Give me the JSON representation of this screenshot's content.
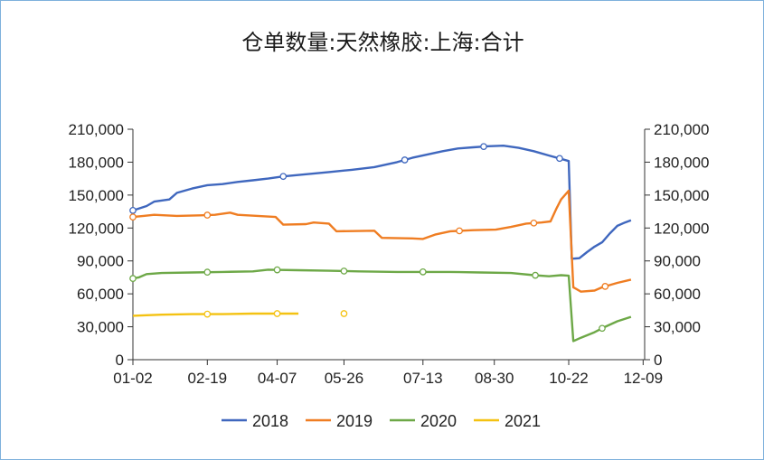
{
  "chart_data": {
    "type": "line",
    "title": "仓单数量:天然橡胶:上海:合计",
    "x_tick_labels": [
      "01-02",
      "02-19",
      "04-07",
      "05-26",
      "07-13",
      "08-30",
      "10-22",
      "12-09"
    ],
    "ylim": [
      0,
      210000
    ],
    "y_ticks": [
      0,
      30000,
      60000,
      90000,
      120000,
      150000,
      180000,
      210000
    ],
    "y_tick_labels": [
      "0",
      "30,000",
      "60,000",
      "90,000",
      "120,000",
      "150,000",
      "180,000",
      "210,000"
    ],
    "right_axis": true,
    "legend_position": "bottom",
    "series": [
      {
        "name": "2018",
        "color": "#3f67be",
        "points": [
          [
            1,
            136000
          ],
          [
            10,
            140000
          ],
          [
            15,
            144000
          ],
          [
            25,
            146000
          ],
          [
            30,
            152000
          ],
          [
            40,
            156000
          ],
          [
            50,
            159000
          ],
          [
            60,
            160000
          ],
          [
            70,
            162000
          ],
          [
            80,
            163500
          ],
          [
            90,
            165000
          ],
          [
            100,
            167000
          ],
          [
            115,
            169000
          ],
          [
            130,
            171000
          ],
          [
            145,
            173000
          ],
          [
            160,
            175500
          ],
          [
            175,
            180000
          ],
          [
            185,
            184000
          ],
          [
            195,
            187000
          ],
          [
            205,
            190000
          ],
          [
            215,
            192500
          ],
          [
            225,
            193500
          ],
          [
            235,
            194500
          ],
          [
            245,
            195000
          ],
          [
            255,
            193000
          ],
          [
            265,
            190000
          ],
          [
            275,
            186000
          ],
          [
            283,
            183000
          ],
          [
            288,
            181000
          ],
          [
            290,
            92000
          ],
          [
            295,
            92500
          ],
          [
            300,
            98000
          ],
          [
            305,
            103000
          ],
          [
            310,
            107000
          ],
          [
            315,
            115000
          ],
          [
            320,
            122000
          ],
          [
            325,
            125000
          ],
          [
            329,
            127000
          ]
        ],
        "markers": [
          1,
          100,
          180,
          232,
          282
        ]
      },
      {
        "name": "2019",
        "color": "#ef7d22",
        "points": [
          [
            1,
            130000
          ],
          [
            8,
            131000
          ],
          [
            15,
            132000
          ],
          [
            30,
            131000
          ],
          [
            45,
            131500
          ],
          [
            55,
            132000
          ],
          [
            65,
            134000
          ],
          [
            70,
            132000
          ],
          [
            95,
            130000
          ],
          [
            100,
            123000
          ],
          [
            115,
            123500
          ],
          [
            120,
            125000
          ],
          [
            130,
            124000
          ],
          [
            135,
            117000
          ],
          [
            160,
            117500
          ],
          [
            165,
            111000
          ],
          [
            185,
            110500
          ],
          [
            192,
            110000
          ],
          [
            200,
            114000
          ],
          [
            210,
            117000
          ],
          [
            225,
            118000
          ],
          [
            240,
            118500
          ],
          [
            250,
            121000
          ],
          [
            260,
            124000
          ],
          [
            270,
            125000
          ],
          [
            276,
            126000
          ],
          [
            280,
            138000
          ],
          [
            283,
            146000
          ],
          [
            288,
            154000
          ],
          [
            291,
            66000
          ],
          [
            296,
            62000
          ],
          [
            305,
            63000
          ],
          [
            310,
            66000
          ],
          [
            320,
            70000
          ],
          [
            329,
            73000
          ]
        ],
        "markers": [
          1,
          50,
          216,
          265,
          312
        ]
      },
      {
        "name": "2020",
        "color": "#6da847",
        "points": [
          [
            1,
            74000
          ],
          [
            5,
            75000
          ],
          [
            10,
            78000
          ],
          [
            20,
            79000
          ],
          [
            40,
            79500
          ],
          [
            60,
            80000
          ],
          [
            80,
            80500
          ],
          [
            90,
            82000
          ],
          [
            110,
            81500
          ],
          [
            130,
            81000
          ],
          [
            150,
            80500
          ],
          [
            175,
            80000
          ],
          [
            195,
            80000
          ],
          [
            210,
            80000
          ],
          [
            230,
            79500
          ],
          [
            250,
            79000
          ],
          [
            265,
            77000
          ],
          [
            275,
            76000
          ],
          [
            283,
            77000
          ],
          [
            288,
            76500
          ],
          [
            291,
            17000
          ],
          [
            296,
            20000
          ],
          [
            305,
            25000
          ],
          [
            312,
            30000
          ],
          [
            320,
            35000
          ],
          [
            329,
            39000
          ]
        ],
        "markers": [
          1,
          50,
          96,
          140,
          192,
          266,
          310
        ]
      },
      {
        "name": "2021",
        "color": "#f4c212",
        "points": [
          [
            1,
            40000
          ],
          [
            10,
            40500
          ],
          [
            20,
            41000
          ],
          [
            40,
            41500
          ],
          [
            60,
            41500
          ],
          [
            80,
            42000
          ],
          [
            100,
            42000
          ],
          [
            110,
            42000
          ]
        ],
        "markers": [
          50,
          96,
          140
        ]
      }
    ]
  }
}
